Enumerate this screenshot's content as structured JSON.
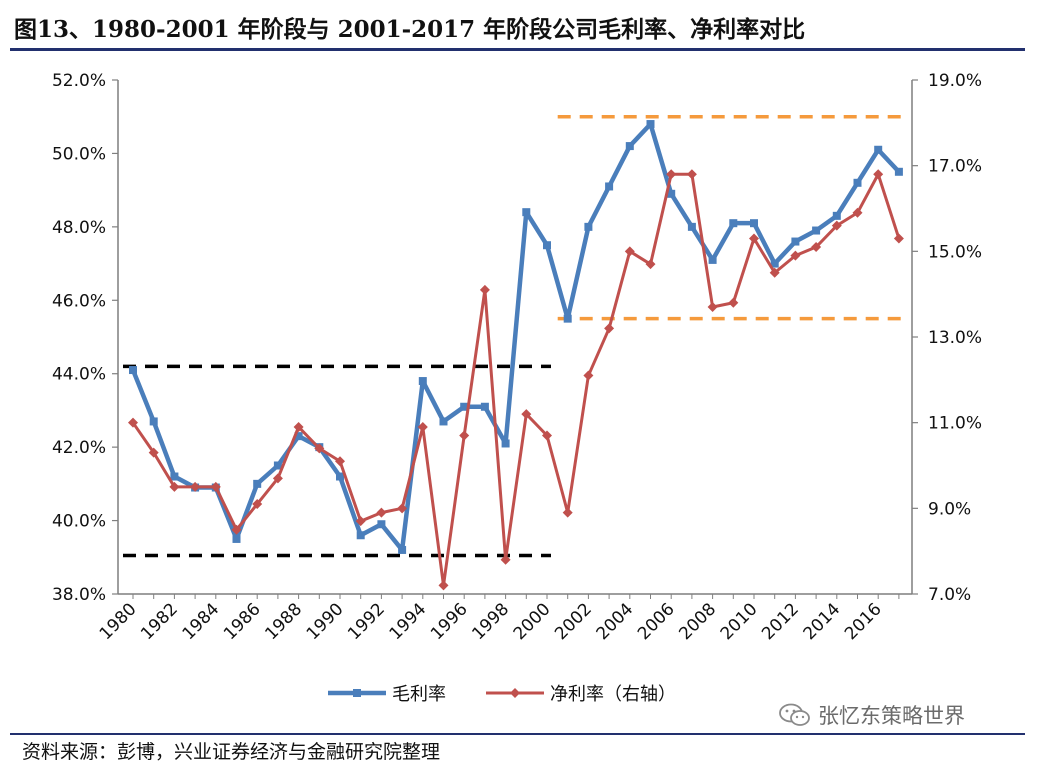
{
  "header": {
    "title": "图13、1980-2001 年阶段与 2001-2017 年阶段公司毛利率、净利率对比"
  },
  "footer": {
    "source": "资料来源：彭博，兴业证券经济与金融研究院整理",
    "watermark": "张忆东策略世界"
  },
  "chart_data": {
    "type": "line",
    "title": "",
    "x": [
      1980,
      1981,
      1982,
      1983,
      1984,
      1985,
      1986,
      1987,
      1988,
      1989,
      1990,
      1991,
      1992,
      1993,
      1994,
      1995,
      1996,
      1997,
      1998,
      1999,
      2000,
      2001,
      2002,
      2003,
      2004,
      2005,
      2006,
      2007,
      2008,
      2009,
      2010,
      2011,
      2012,
      2013,
      2014,
      2015,
      2016,
      2017
    ],
    "x_tick_labels": [
      "1980",
      "1982",
      "1984",
      "1986",
      "1988",
      "1990",
      "1992",
      "1994",
      "1996",
      "1998",
      "2000",
      "2002",
      "2004",
      "2006",
      "2008",
      "2010",
      "2012",
      "2014",
      "2016"
    ],
    "y_left": {
      "ylim": [
        38.0,
        52.0
      ],
      "ticks": [
        "38.0%",
        "40.0%",
        "42.0%",
        "44.0%",
        "46.0%",
        "48.0%",
        "50.0%",
        "52.0%"
      ]
    },
    "y_right": {
      "ylim": [
        7.0,
        19.0
      ],
      "ticks": [
        "7.0%",
        "9.0%",
        "11.0%",
        "13.0%",
        "15.0%",
        "17.0%",
        "19.0%"
      ]
    },
    "series": [
      {
        "name": "毛利率",
        "axis": "left",
        "color": "#4a7ebb",
        "marker": "square",
        "values": [
          44.1,
          42.7,
          41.2,
          40.9,
          40.9,
          39.5,
          41.0,
          41.5,
          42.3,
          42.0,
          41.2,
          39.6,
          39.9,
          39.2,
          43.8,
          42.7,
          43.1,
          43.1,
          42.1,
          48.4,
          47.5,
          45.5,
          48.0,
          49.1,
          50.2,
          50.8,
          48.9,
          48.0,
          47.1,
          48.1,
          48.1,
          47.0,
          47.6,
          47.9,
          48.3,
          49.2,
          50.1,
          49.5
        ]
      },
      {
        "name": "净利率（右轴）",
        "axis": "right",
        "color": "#c0504d",
        "marker": "diamond",
        "values": [
          11.0,
          10.3,
          9.5,
          9.5,
          9.5,
          8.5,
          9.1,
          9.7,
          10.9,
          10.4,
          10.1,
          8.7,
          8.9,
          9.0,
          10.9,
          7.2,
          10.7,
          14.1,
          7.8,
          11.2,
          10.7,
          8.9,
          12.1,
          13.2,
          15.0,
          14.7,
          16.8,
          16.8,
          13.7,
          13.8,
          15.3,
          14.5,
          14.9,
          15.1,
          15.6,
          15.9,
          16.8,
          15.3
        ]
      }
    ],
    "reference_lines": [
      {
        "color": "#000000",
        "style": "dashed",
        "axis": "left",
        "y": 44.2,
        "x_from": 1980,
        "x_to": 2000
      },
      {
        "color": "#000000",
        "style": "dashed",
        "axis": "left",
        "y": 39.05,
        "x_from": 1980,
        "x_to": 2000
      },
      {
        "color": "#f59a3c",
        "style": "dashed",
        "axis": "left",
        "y": 51.0,
        "x_from": 2001,
        "x_to": 2017
      },
      {
        "color": "#f59a3c",
        "style": "dashed",
        "axis": "left",
        "y": 45.5,
        "x_from": 2001,
        "x_to": 2017
      }
    ],
    "legend": {
      "position": "bottom",
      "entries": [
        "毛利率",
        "净利率（右轴）"
      ]
    },
    "grid": false
  }
}
